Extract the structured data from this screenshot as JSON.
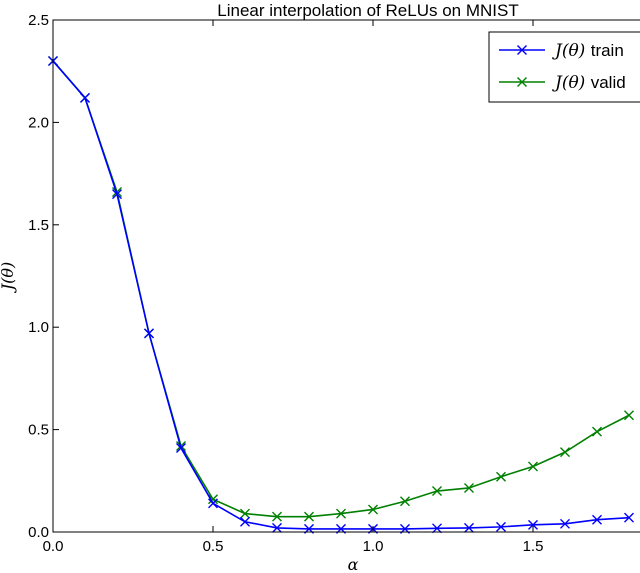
{
  "chart_data": {
    "type": "line",
    "title": "Linear interpolation of ReLUs on MNIST",
    "xlabel": "α",
    "ylabel": "J(θ)",
    "xlim": [
      0.0,
      1.8
    ],
    "ylim": [
      0.0,
      2.5
    ],
    "x_ticks": [
      "0.0",
      "0.5",
      "1.0",
      "1.5"
    ],
    "y_ticks": [
      "0.0",
      "0.5",
      "1.0",
      "1.5",
      "2.0",
      "2.5"
    ],
    "grid": false,
    "legend_position": "top-right",
    "x": [
      0.0,
      0.1,
      0.2,
      0.3,
      0.4,
      0.5,
      0.6,
      0.7,
      0.8,
      0.9,
      1.0,
      1.1,
      1.2,
      1.3,
      1.4,
      1.5,
      1.6,
      1.7,
      1.8
    ],
    "series": [
      {
        "name": "J(θ) train",
        "color": "#0000ff",
        "marker": "x",
        "values": [
          2.3,
          2.12,
          1.65,
          0.97,
          0.41,
          0.14,
          0.05,
          0.02,
          0.015,
          0.015,
          0.015,
          0.015,
          0.018,
          0.02,
          0.025,
          0.035,
          0.04,
          0.06,
          0.07
        ]
      },
      {
        "name": "J(θ) valid",
        "color": "#008000",
        "marker": "x",
        "values": [
          2.3,
          2.12,
          1.66,
          0.97,
          0.42,
          0.16,
          0.09,
          0.075,
          0.075,
          0.09,
          0.11,
          0.15,
          0.2,
          0.215,
          0.27,
          0.32,
          0.39,
          0.49,
          0.57
        ]
      }
    ]
  }
}
